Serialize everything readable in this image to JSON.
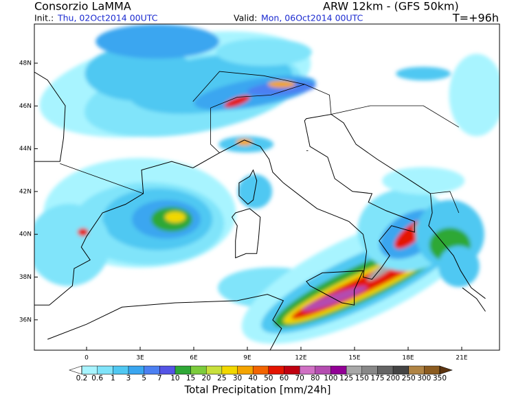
{
  "header": {
    "title": "Consorzio LaMMA",
    "model": "ARW 12km - (GFS 50km)",
    "init_label": "Init.:",
    "init_value": "Thu, 02Oct2014 00UTC",
    "valid_label": "Valid:",
    "valid_value": "Mon, 06Oct2014 00UTC",
    "lead_time": "T=+96h"
  },
  "map": {
    "lat_labels": [
      "48N",
      "46N",
      "44N",
      "42N",
      "40N",
      "38N",
      "36N"
    ],
    "lon_labels": [
      "0",
      "3E",
      "6E",
      "9E",
      "12E",
      "15E",
      "18E",
      "21E"
    ]
  },
  "colorbar": {
    "title": "Total Precipitation [mm/24h]",
    "levels": [
      0.2,
      0.6,
      1,
      3,
      5,
      7,
      10,
      15,
      20,
      25,
      30,
      40,
      50,
      60,
      70,
      80,
      100,
      125,
      150,
      175,
      200,
      250,
      300,
      350
    ],
    "under_color": "#ffffff",
    "colors": [
      "#a8f4ff",
      "#80e4fa",
      "#50c8f2",
      "#3aa6f0",
      "#4c80f2",
      "#5454e6",
      "#2ea836",
      "#7ccc3c",
      "#c8e03c",
      "#f2d800",
      "#f4a400",
      "#f26400",
      "#e41400",
      "#c00010",
      "#d070c4",
      "#b44cb0",
      "#920096",
      "#a8a8a8",
      "#888888",
      "#646464",
      "#444444",
      "#b08444",
      "#8c5c20"
    ],
    "over_color": "#5c3410"
  }
}
